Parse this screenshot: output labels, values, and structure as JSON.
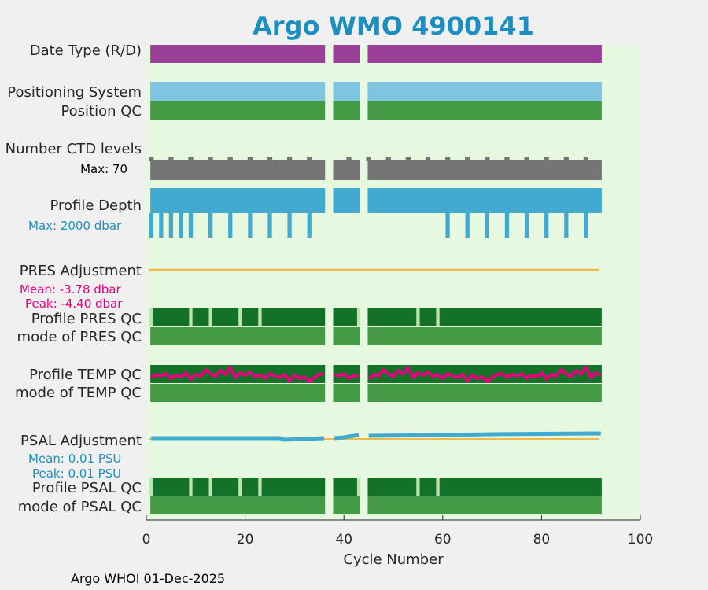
{
  "chart_data": {
    "type": "bar",
    "title": "Argo WMO 4900141",
    "xlabel": "Cycle Number",
    "xlim": [
      0,
      100
    ],
    "xticks": [
      0,
      20,
      40,
      60,
      80,
      100
    ],
    "cycles_present": {
      "first": 1,
      "last": 92,
      "missing": [
        37,
        44
      ]
    },
    "rows": {
      "date_type": "Date Type (R/D)",
      "positioning_system": "Positioning System",
      "position_qc": "Position QC",
      "ctd_levels": "Number CTD levels",
      "ctd_max": "Max: 70",
      "profile_depth": "Profile Depth",
      "depth_max": "Max: 2000 dbar",
      "pres_adjustment": "PRES Adjustment",
      "pres_mean": "Mean: -3.78 dbar",
      "pres_peak": "Peak: -4.40 dbar",
      "profile_pres_qc": "Profile PRES QC",
      "mode_pres_qc": "mode of PRES QC",
      "profile_temp_qc": "Profile TEMP QC",
      "mode_temp_qc": "mode of TEMP QC",
      "psal_adjustment": "PSAL Adjustment",
      "psal_mean": "Mean: 0.01 PSU",
      "psal_peak": "Peak: 0.01 PSU",
      "profile_psal_qc": "Profile PSAL QC",
      "mode_psal_qc": "mode of PSAL QC"
    },
    "ctd_levels_series": {
      "max": 70,
      "typical": 66,
      "peaks": 70
    },
    "depth_short_cycles": [
      1,
      3,
      5,
      7,
      9,
      13,
      17,
      21,
      25,
      29,
      33,
      61,
      65,
      69,
      73,
      77,
      81,
      85,
      89
    ],
    "pres_qc_light_cycles": [
      1,
      9,
      13,
      19,
      23,
      43,
      55,
      59
    ],
    "psal_qc_light_cycles": [
      1,
      9,
      13,
      19,
      23,
      43,
      55,
      59
    ],
    "temp_adjustment_trace": [
      0.2,
      0.6,
      0.4,
      0.7,
      0.1,
      0.5,
      0.3,
      0.8,
      0.0,
      0.6,
      0.4,
      1.2,
      0.7,
      0.3,
      1.1,
      0.6,
      1.5,
      0.2,
      0.8,
      0.5,
      0.9,
      0.3,
      0.6,
      0.1,
      0.7,
      0.4,
      0.2,
      0.6,
      -0.2,
      0.5,
      0.1,
      0.3,
      -0.3,
      0.2,
      0.6,
      0.7
    ],
    "psal_adjustment_values": {
      "mean": 0.01,
      "peak": 0.01,
      "unit": "PSU"
    },
    "pres_adjustment_values": {
      "mean": -3.78,
      "peak": -4.4,
      "unit": "dbar"
    },
    "colors": {
      "background": "#e6f9e0",
      "date_type": "#9a3f98",
      "positioning": "#7fc4e0",
      "position_qc": "#459a45",
      "ctd": "#757575",
      "depth": "#42aad1",
      "pres_adj": "#f0b94a",
      "qc_dark": "#147228",
      "qc_light": "#bde2b3",
      "qc_mode": "#459a45",
      "temp_trace": "#e6007e",
      "psal_trace": "#42aad1"
    }
  },
  "footer": "Argo WHOI 01-Dec-2025"
}
